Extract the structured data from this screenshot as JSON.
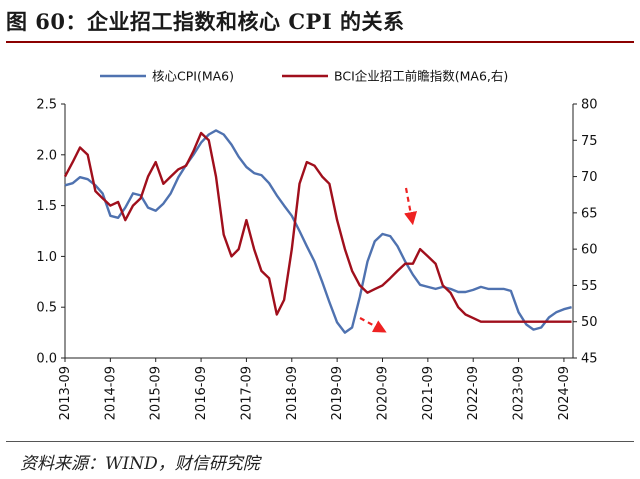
{
  "figure": {
    "title": "图 60：企业招工指数和核心 CPI 的关系",
    "source": "资料来源：WIND，财信研究院"
  },
  "colors": {
    "cpi": "#4f72b0",
    "bci": "#a00f1c",
    "arrow": "#ee2222"
  },
  "chart_data": {
    "type": "line",
    "title": "",
    "x_labels": [
      "2013-09",
      "2014-09",
      "2015-09",
      "2016-09",
      "2017-09",
      "2018-09",
      "2019-09",
      "2020-09",
      "2021-09",
      "2022-09",
      "2023-09",
      "2024-09"
    ],
    "ylabel": "",
    "y2label": "",
    "ylim": [
      0.0,
      2.5
    ],
    "y2lim": [
      45,
      80
    ],
    "yticks": [
      "0.0",
      "0.5",
      "1.0",
      "1.5",
      "2.0",
      "2.5"
    ],
    "y2ticks": [
      "45",
      "50",
      "55",
      "60",
      "65",
      "70",
      "75",
      "80"
    ],
    "legend_position": "top",
    "grid": false,
    "series": [
      {
        "name": "核心CPI(MA6)",
        "axis": "left",
        "x": [
          2013.75,
          2013.92,
          2014.08,
          2014.25,
          2014.42,
          2014.58,
          2014.75,
          2014.92,
          2015.08,
          2015.25,
          2015.42,
          2015.58,
          2015.75,
          2015.92,
          2016.08,
          2016.25,
          2016.42,
          2016.58,
          2016.75,
          2016.92,
          2017.08,
          2017.25,
          2017.42,
          2017.58,
          2017.75,
          2017.92,
          2018.08,
          2018.25,
          2018.42,
          2018.58,
          2018.75,
          2018.92,
          2019.08,
          2019.25,
          2019.42,
          2019.58,
          2019.75,
          2019.92,
          2020.08,
          2020.25,
          2020.42,
          2020.58,
          2020.75,
          2020.92,
          2021.08,
          2021.25,
          2021.42,
          2021.58,
          2021.75,
          2021.92,
          2022.08,
          2022.25,
          2022.42,
          2022.58,
          2022.75,
          2022.92,
          2023.08,
          2023.25,
          2023.42,
          2023.58,
          2023.75,
          2023.92,
          2024.08,
          2024.25,
          2024.42,
          2024.58,
          2024.75,
          2024.92
        ],
        "values": [
          1.7,
          1.72,
          1.78,
          1.76,
          1.7,
          1.62,
          1.4,
          1.38,
          1.48,
          1.62,
          1.6,
          1.48,
          1.45,
          1.52,
          1.62,
          1.78,
          1.9,
          2.0,
          2.12,
          2.2,
          2.24,
          2.2,
          2.1,
          1.98,
          1.88,
          1.82,
          1.8,
          1.72,
          1.6,
          1.5,
          1.4,
          1.25,
          1.1,
          0.95,
          0.75,
          0.55,
          0.35,
          0.25,
          0.3,
          0.6,
          0.95,
          1.15,
          1.22,
          1.2,
          1.1,
          0.95,
          0.82,
          0.72,
          0.7,
          0.68,
          0.7,
          0.68,
          0.65,
          0.65,
          0.67,
          0.7,
          0.68,
          0.68,
          0.68,
          0.66,
          0.45,
          0.33,
          0.28,
          0.3,
          0.4,
          0.45,
          0.48,
          0.5
        ]
      },
      {
        "name": "BCI企业招工前瞻指数(MA6,右)",
        "axis": "right",
        "x": [
          2013.75,
          2013.92,
          2014.08,
          2014.25,
          2014.42,
          2014.58,
          2014.75,
          2014.92,
          2015.08,
          2015.25,
          2015.42,
          2015.58,
          2015.75,
          2015.92,
          2016.08,
          2016.25,
          2016.42,
          2016.58,
          2016.75,
          2016.92,
          2017.08,
          2017.25,
          2017.42,
          2017.58,
          2017.75,
          2017.92,
          2018.08,
          2018.25,
          2018.42,
          2018.58,
          2018.75,
          2018.92,
          2019.08,
          2019.25,
          2019.42,
          2019.58,
          2019.75,
          2019.92,
          2020.08,
          2020.25,
          2020.42,
          2020.58,
          2020.75,
          2020.92,
          2021.08,
          2021.25,
          2021.42,
          2021.58,
          2021.75,
          2021.92,
          2022.08,
          2022.25,
          2022.42,
          2022.58,
          2022.75,
          2022.92,
          2023.08,
          2023.25,
          2023.42,
          2023.58,
          2023.75,
          2023.92,
          2024.08,
          2024.25,
          2024.42,
          2024.58,
          2024.75,
          2024.92
        ],
        "values": [
          70.0,
          72.0,
          74.0,
          73.0,
          68.0,
          67.0,
          66.0,
          66.5,
          64.0,
          66.0,
          67.0,
          70.0,
          72.0,
          69.0,
          70.0,
          71.0,
          71.5,
          73.5,
          76.0,
          75.0,
          70.0,
          62.0,
          59.0,
          60.0,
          64.0,
          60.0,
          57.0,
          56.0,
          51.0,
          53.0,
          60.0,
          69.0,
          72.0,
          71.5,
          70.0,
          69.0,
          64.0,
          60.0,
          57.0,
          55.0,
          54.0,
          54.5,
          55.0,
          56.0,
          57.0,
          58.0,
          58.0,
          60.0,
          59.0,
          58.0,
          55.0,
          54.0,
          52.0,
          51.0,
          50.5,
          50.0,
          50.0,
          50.0,
          50.0,
          50.0,
          50.0,
          50.0,
          50.0,
          50.0,
          50.0,
          50.0,
          50.0,
          50.0
        ]
      }
    ]
  }
}
